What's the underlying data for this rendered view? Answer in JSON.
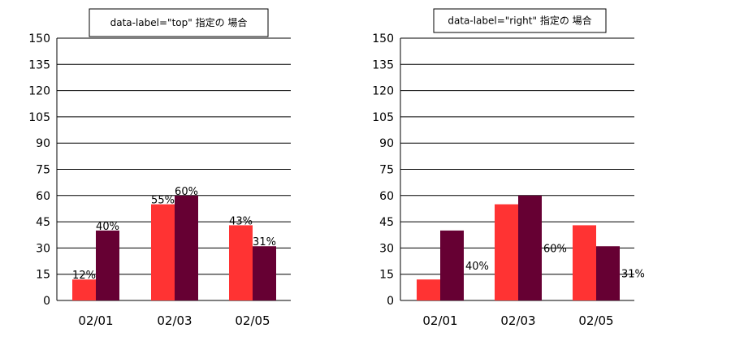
{
  "chart_data": [
    {
      "type": "bar",
      "title": "data-label=\"top\" 指定の 場合",
      "label_position": "top",
      "categories": [
        "02/01",
        "02/03",
        "02/05"
      ],
      "series": [
        {
          "values": [
            12,
            55,
            43
          ],
          "labels": [
            "12%",
            "55%",
            "43%"
          ],
          "color": "#ff3333"
        },
        {
          "values": [
            40,
            60,
            31
          ],
          "labels": [
            "40%",
            "60%",
            "31%"
          ],
          "color": "#660033"
        }
      ],
      "yticks": [
        "150",
        "135",
        "120",
        "105",
        "90",
        "75",
        "60",
        "45",
        "30",
        "15",
        "0"
      ],
      "ylim": [
        0,
        150
      ],
      "grid": true
    },
    {
      "type": "bar",
      "title": "data-label=\"right\" 指定の 場合",
      "label_position": "right",
      "categories": [
        "02/01",
        "02/03",
        "02/05"
      ],
      "series": [
        {
          "values": [
            12,
            55,
            43
          ],
          "labels": [
            "",
            "",
            ""
          ],
          "color": "#ff3333"
        },
        {
          "values": [
            40,
            60,
            31
          ],
          "labels": [
            "40%",
            "60%",
            "31%"
          ],
          "color": "#660033"
        }
      ],
      "yticks": [
        "150",
        "135",
        "120",
        "105",
        "90",
        "75",
        "60",
        "45",
        "30",
        "15",
        "0"
      ],
      "ylim": [
        0,
        150
      ],
      "grid": true
    }
  ]
}
